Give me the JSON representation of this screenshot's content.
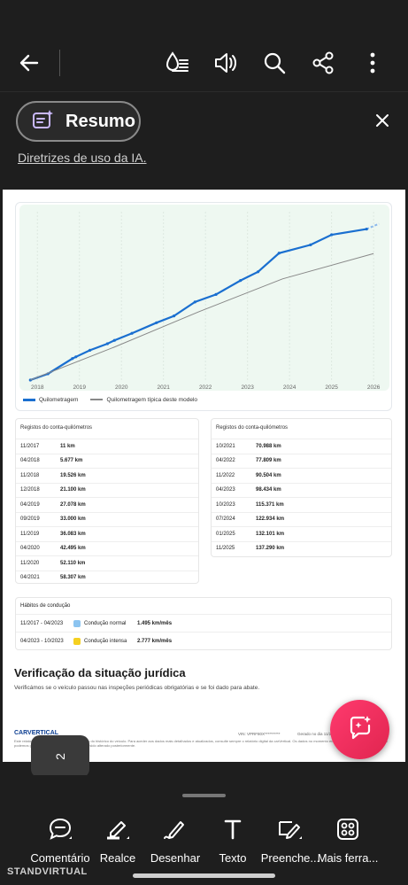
{
  "toolbar": {
    "back_icon": "back-arrow-icon",
    "read_aloud_icon": "read-aloud-icon",
    "audio_icon": "speaker-icon",
    "search_icon": "search-icon",
    "share_icon": "share-icon",
    "more_icon": "more-vertical-icon"
  },
  "summary": {
    "label": "Resumo",
    "guidelines_link": "Diretrizes de uso da IA."
  },
  "chart_data": {
    "type": "line",
    "x_ticks": [
      "2018",
      "2019",
      "2020",
      "2021",
      "2022",
      "2023",
      "2024",
      "2025",
      "2026"
    ],
    "series": [
      {
        "name": "Quilometragem",
        "color": "#1a6fd0",
        "x": [
          "2017-11",
          "2018-04",
          "2018-11",
          "2018-12",
          "2019-04",
          "2019-09",
          "2019-11",
          "2020-04",
          "2020-11",
          "2021-04",
          "2021-10",
          "2022-04",
          "2022-11",
          "2023-04",
          "2023-10",
          "2024-07",
          "2025-01",
          "2025-11"
        ],
        "y": [
          11,
          5677,
          19526,
          21100,
          27078,
          33000,
          36083,
          42495,
          52110,
          58307,
          70988,
          77809,
          90504,
          98434,
          115371,
          122934,
          132101,
          137290
        ]
      },
      {
        "name": "Quilometragem típica deste modelo",
        "color": "#888888",
        "x": [
          "2017-11",
          "2019-11",
          "2021-11",
          "2023-11",
          "2026-01"
        ],
        "y": [
          11,
          30000,
          62000,
          92000,
          115000
        ]
      }
    ],
    "grid": true
  },
  "odometer": {
    "left_header": "Registos do conta-quilómetros",
    "right_header": "Registos do conta-quilómetros",
    "left_rows": [
      {
        "date": "11/2017",
        "km": "11 km"
      },
      {
        "date": "04/2018",
        "km": "5.677 km"
      },
      {
        "date": "11/2018",
        "km": "19.526 km"
      },
      {
        "date": "12/2018",
        "km": "21.100 km"
      },
      {
        "date": "04/2019",
        "km": "27.078 km"
      },
      {
        "date": "09/2019",
        "km": "33.000 km"
      },
      {
        "date": "11/2019",
        "km": "36.083 km"
      },
      {
        "date": "04/2020",
        "km": "42.495 km"
      },
      {
        "date": "11/2020",
        "km": "52.110 km"
      },
      {
        "date": "04/2021",
        "km": "58.307 km"
      }
    ],
    "right_rows": [
      {
        "date": "10/2021",
        "km": "70.988 km"
      },
      {
        "date": "04/2022",
        "km": "77.809 km"
      },
      {
        "date": "11/2022",
        "km": "90.504 km"
      },
      {
        "date": "04/2023",
        "km": "98.434 km"
      },
      {
        "date": "10/2023",
        "km": "115.371 km"
      },
      {
        "date": "07/2024",
        "km": "122.934 km"
      },
      {
        "date": "01/2025",
        "km": "132.101 km"
      },
      {
        "date": "11/2025",
        "km": "137.290 km"
      }
    ]
  },
  "habits": {
    "header": "Hábitos de condução",
    "rows": [
      {
        "period": "11/2017 - 04/2023",
        "label": "Condução normal",
        "value": "1.495 km/mês",
        "color": "#8cc4f0"
      },
      {
        "period": "04/2023 - 10/2023",
        "label": "Condução intensa",
        "value": "2.777 km/mês",
        "color": "#f5d020"
      }
    ]
  },
  "legal": {
    "title": "Verificação da situação jurídica",
    "text": "Verificámos se o veículo passou nas inspeções periódicas obrigatórias e se foi dado para abate."
  },
  "footer": {
    "brand": "CARVERTICAL",
    "vin": "VIN: VPRF80X**********",
    "generated": "Gerado no dia 11/2...",
    "fine_print": "Este relatório cobre apenas os principais pontos do histórico do veículo. Para aceder aos dados mais detalhados e atualizados, consulte sempre o relatório digital da carVertical. Os dados no momento em que este relatório for gerado, não podemos garantir que o ficheiro PDF não tenha sido alterado posteriormente."
  },
  "page_indicator": "2",
  "tools": [
    {
      "label": "Comentário",
      "icon": "comment-icon"
    },
    {
      "label": "Realce",
      "icon": "highlight-icon"
    },
    {
      "label": "Desenhar",
      "icon": "draw-icon"
    },
    {
      "label": "Texto",
      "icon": "text-icon"
    },
    {
      "label": "Preenche...",
      "icon": "fill-sign-icon"
    },
    {
      "label": "Mais ferra...",
      "icon": "more-tools-icon"
    }
  ],
  "watermark": "STANDVIRTUAL"
}
